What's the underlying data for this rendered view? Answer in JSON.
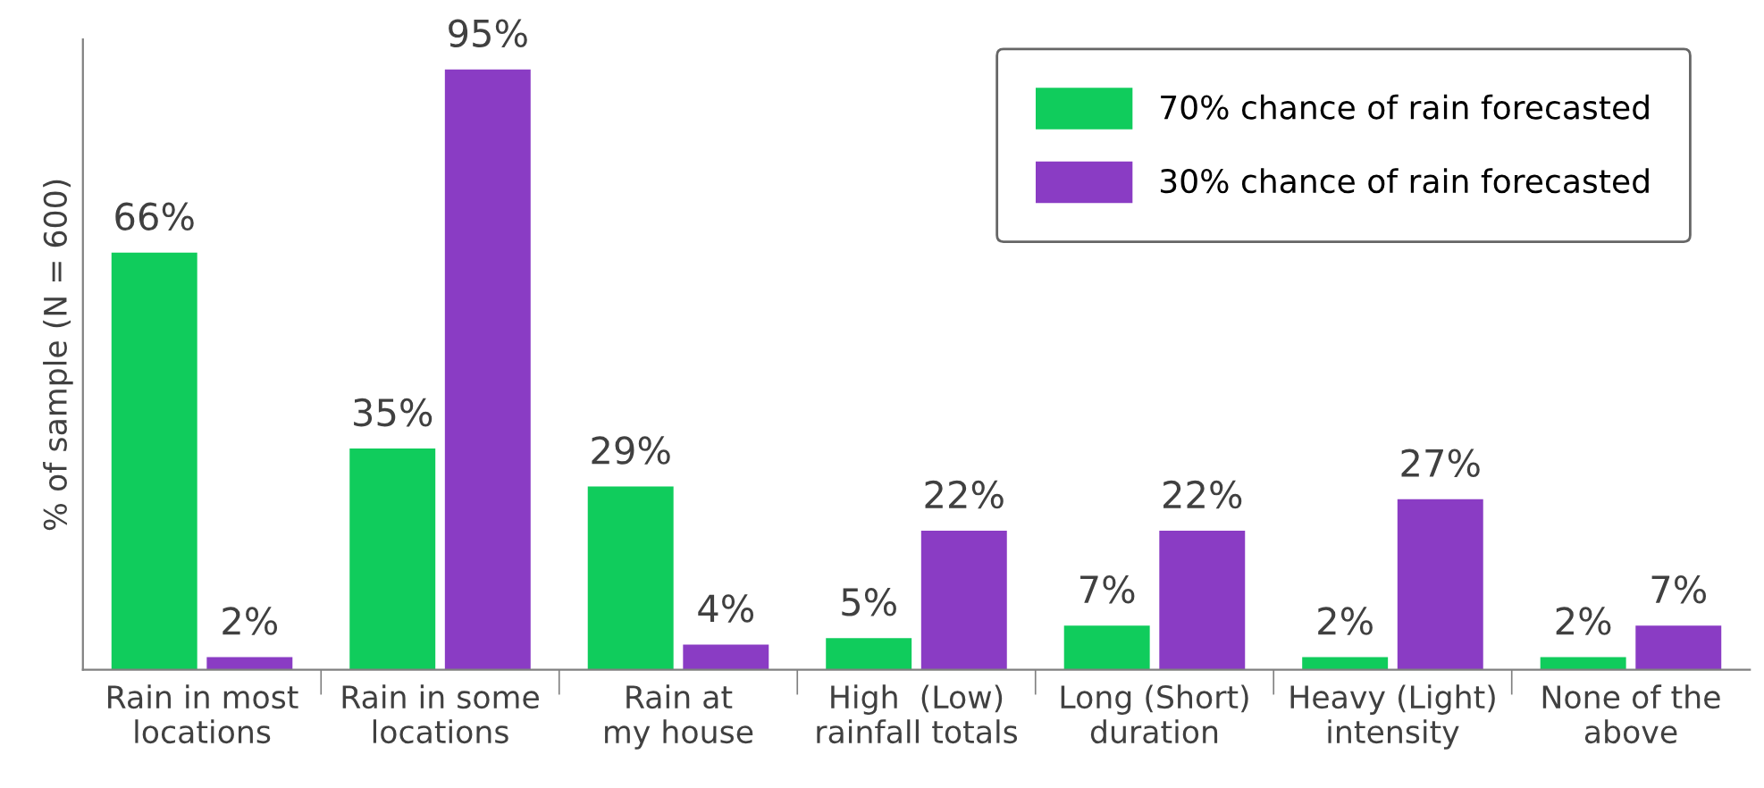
{
  "chart_data": {
    "type": "bar",
    "ylabel": "% of sample (N = 600)",
    "categories": [
      "Rain in most\nlocations",
      "Rain in some\nlocations",
      "Rain at\nmy house",
      "High  (Low)\nrainfall totals",
      "Long (Short)\nduration",
      "Heavy (Light)\nintensity",
      "None of the\nabove"
    ],
    "series": [
      {
        "name": "70% chance of rain forecasted",
        "color": "#10cc5c",
        "values": [
          66,
          35,
          29,
          5,
          7,
          2,
          2
        ],
        "value_labels": [
          "66%",
          "35%",
          "29%",
          "5%",
          "7%",
          "2%",
          "2%"
        ]
      },
      {
        "name": "30% chance of rain forecasted",
        "color": "#8a3cc4",
        "values": [
          2,
          95,
          4,
          22,
          22,
          27,
          7
        ],
        "value_labels": [
          "2%",
          "95%",
          "4%",
          "22%",
          "22%",
          "27%",
          "7%"
        ]
      }
    ],
    "legend": "top right",
    "tick_labels": "x"
  }
}
